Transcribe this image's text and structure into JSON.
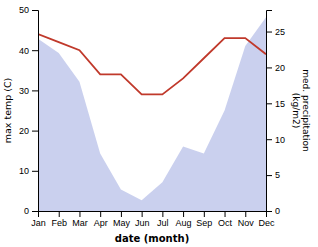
{
  "chart_data": {
    "type": "line",
    "categories": [
      "Jan",
      "Feb",
      "Mar",
      "Apr",
      "May",
      "Jun",
      "Jul",
      "Aug",
      "Sep",
      "Oct",
      "Nov",
      "Dec"
    ],
    "series": [
      {
        "type": "area",
        "color": "#b8c0e8",
        "axis": "y2",
        "values": [
          24,
          22,
          18,
          8,
          3,
          1.5,
          4,
          9,
          8,
          14,
          23,
          27
        ]
      },
      {
        "type": "line",
        "color": "#c0392b",
        "values": [
          44,
          42,
          40,
          34,
          34,
          29,
          29,
          33,
          38,
          43,
          43,
          39
        ]
      }
    ],
    "xlabel": "date (month)",
    "ylabel": "max temp (C)",
    "y2label": "med. precipitation\n(kg/m2)",
    "ylim": [
      0,
      50
    ],
    "yticks": [
      0,
      10,
      20,
      30,
      40,
      50
    ],
    "y2lim": [
      0,
      28
    ],
    "y2ticks": [
      0,
      5,
      10,
      15,
      20,
      25
    ]
  }
}
